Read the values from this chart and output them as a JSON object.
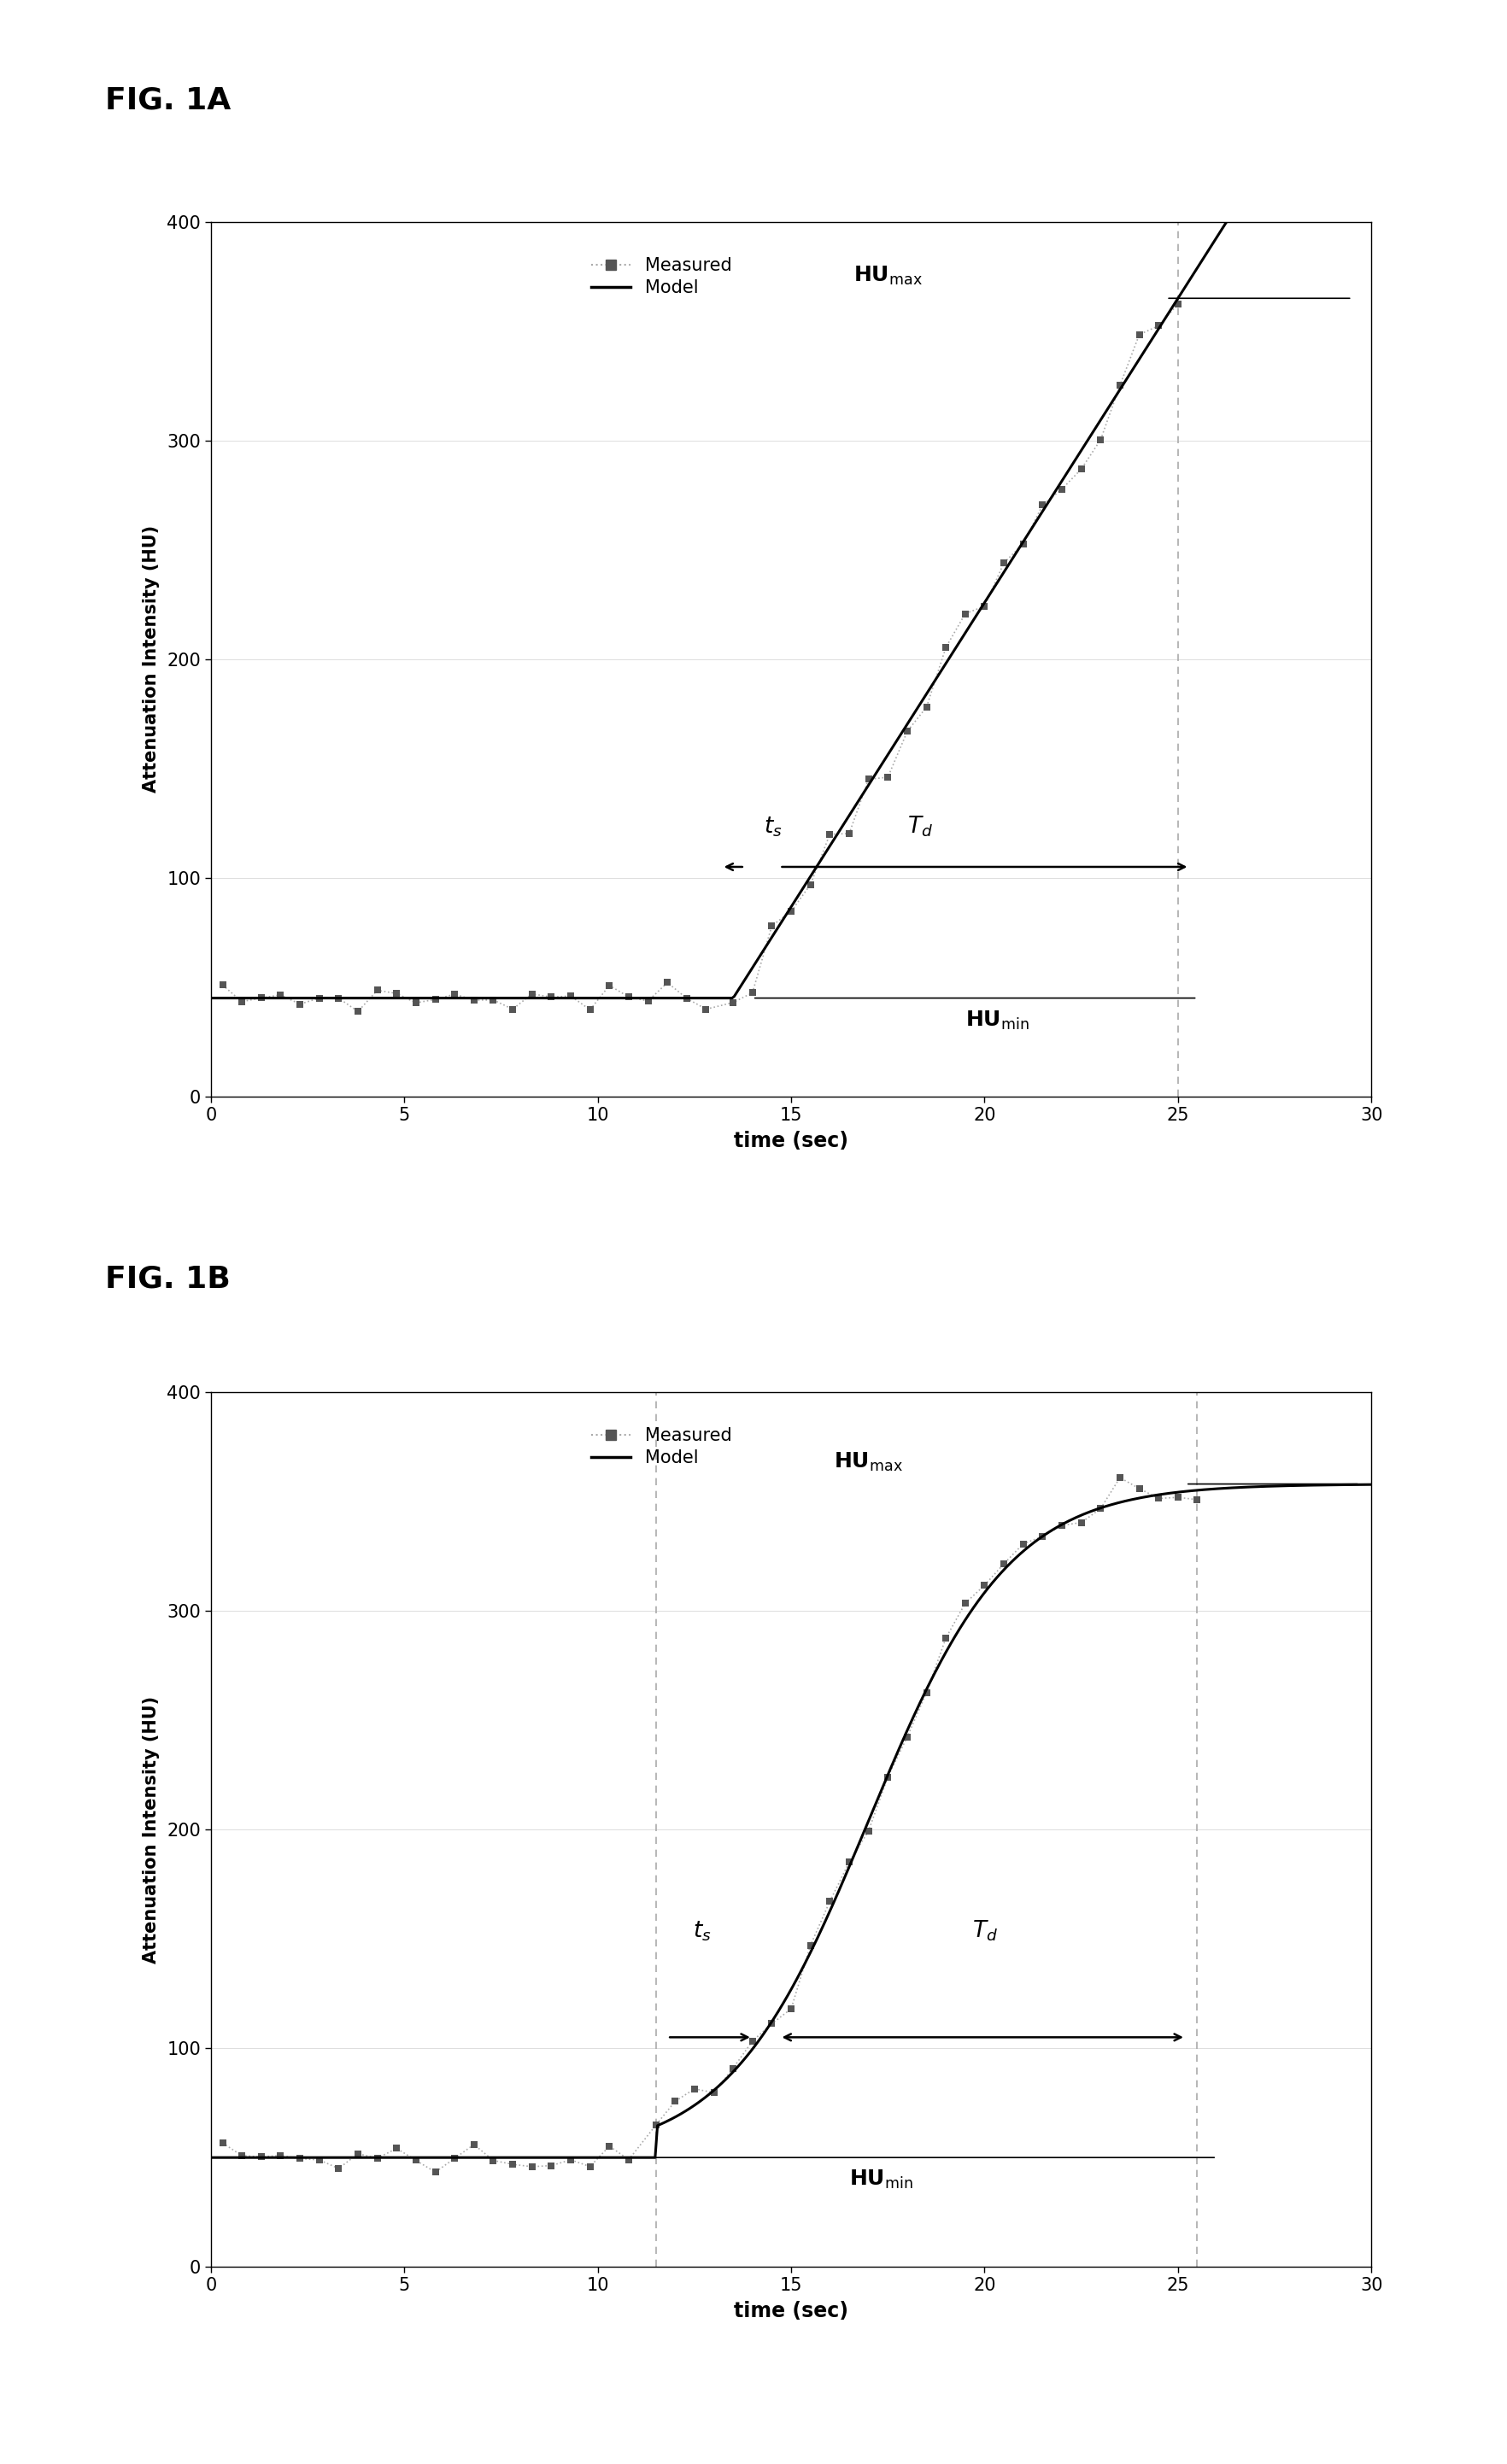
{
  "fig_label_A": "FIG. 1A",
  "fig_label_B": "FIG. 1B",
  "xlabel": "time (sec)",
  "ylabel": "Attenuation Intensity (HU)",
  "xlim": [
    0,
    30
  ],
  "ylim": [
    0,
    400
  ],
  "xticks": [
    0,
    5,
    10,
    15,
    20,
    25,
    30
  ],
  "yticks": [
    0,
    100,
    200,
    300,
    400
  ],
  "legend_measured": "Measured",
  "legend_model": "Model",
  "background_color": "#ffffff",
  "scatter_color": "#555555",
  "dashed_line_color": "#aaaaaa",
  "A_ts": 13.5,
  "A_td_end": 25.0,
  "A_HUmin": 45,
  "A_HUmax": 365,
  "A_slope_extend": 2.0,
  "B_ts": 11.5,
  "B_td_end": 25.5,
  "B_HUmin": 50,
  "B_HUmax": 358,
  "B_sigmoid_k": 0.55,
  "B_sigmoid_mid": 17.0
}
